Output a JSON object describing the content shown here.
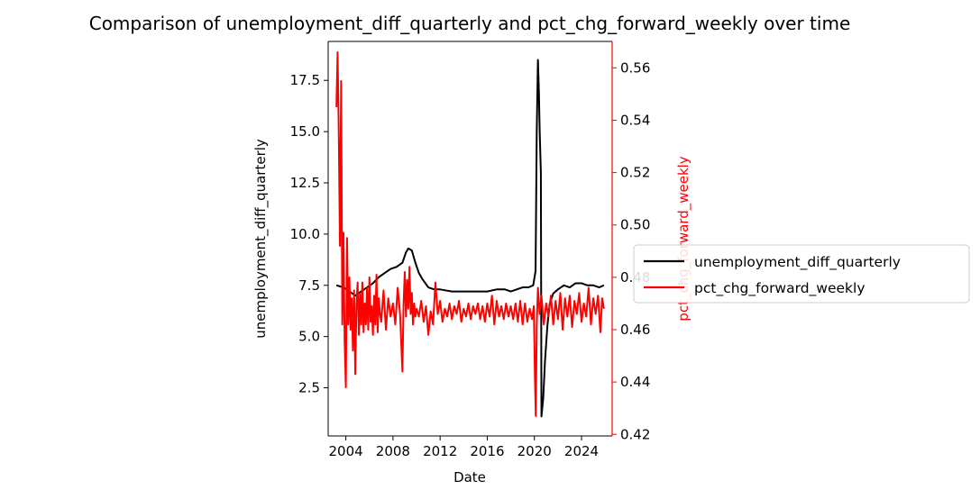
{
  "chart_data": {
    "type": "line",
    "title": "Comparison of unemployment_diff_quarterly and pct_chg_forward_weekly over time",
    "xlabel": "Date",
    "ylabel_left": "unemployment_diff_quarterly",
    "ylabel_right": "pct_chg_forward_weekly",
    "xlim": [
      2002.5,
      2026.6
    ],
    "ylim_left": [
      0.15,
      19.4
    ],
    "ylim_right": [
      0.4194,
      0.5701
    ],
    "x_ticks": [
      2004,
      2008,
      2012,
      2016,
      2020,
      2024
    ],
    "y_left_ticks": [
      2.5,
      5.0,
      7.5,
      10.0,
      12.5,
      15.0,
      17.5
    ],
    "y_right_ticks": [
      0.42,
      0.44,
      0.46,
      0.48,
      0.5,
      0.52,
      0.54,
      0.56
    ],
    "grid": false,
    "legend_position": "right, outside",
    "series": [
      {
        "name": "unemployment_diff_quarterly",
        "axis": "left",
        "color": "#000000",
        "points": [
          [
            2003.2,
            7.5
          ],
          [
            2003.8,
            7.4
          ],
          [
            2004.3,
            7.2
          ],
          [
            2004.8,
            7.0
          ],
          [
            2005.3,
            7.2
          ],
          [
            2005.8,
            7.4
          ],
          [
            2006.3,
            7.6
          ],
          [
            2006.8,
            7.9
          ],
          [
            2007.3,
            8.1
          ],
          [
            2007.8,
            8.3
          ],
          [
            2008.3,
            8.4
          ],
          [
            2008.8,
            8.6
          ],
          [
            2009.1,
            9.1
          ],
          [
            2009.3,
            9.3
          ],
          [
            2009.6,
            9.2
          ],
          [
            2009.9,
            8.6
          ],
          [
            2010.2,
            8.1
          ],
          [
            2010.5,
            7.8
          ],
          [
            2011.0,
            7.4
          ],
          [
            2011.5,
            7.3
          ],
          [
            2012.0,
            7.3
          ],
          [
            2013.0,
            7.2
          ],
          [
            2014.0,
            7.2
          ],
          [
            2015.0,
            7.2
          ],
          [
            2016.0,
            7.2
          ],
          [
            2016.8,
            7.3
          ],
          [
            2017.5,
            7.3
          ],
          [
            2018.0,
            7.2
          ],
          [
            2018.5,
            7.3
          ],
          [
            2019.0,
            7.4
          ],
          [
            2019.5,
            7.4
          ],
          [
            2019.9,
            7.5
          ],
          [
            2020.1,
            8.2
          ],
          [
            2020.2,
            15.0
          ],
          [
            2020.3,
            18.5
          ],
          [
            2020.38,
            17.0
          ],
          [
            2020.45,
            15.0
          ],
          [
            2020.55,
            13.0
          ],
          [
            2020.6,
            1.1
          ],
          [
            2020.75,
            2.0
          ],
          [
            2020.9,
            3.8
          ],
          [
            2021.1,
            5.5
          ],
          [
            2021.3,
            6.6
          ],
          [
            2021.6,
            7.1
          ],
          [
            2022.0,
            7.3
          ],
          [
            2022.5,
            7.5
          ],
          [
            2023.0,
            7.4
          ],
          [
            2023.5,
            7.6
          ],
          [
            2024.0,
            7.6
          ],
          [
            2024.5,
            7.5
          ],
          [
            2025.0,
            7.5
          ],
          [
            2025.5,
            7.4
          ],
          [
            2025.9,
            7.5
          ]
        ]
      },
      {
        "name": "pct_chg_forward_weekly",
        "axis": "right",
        "color": "#ff0000",
        "points": [
          [
            2003.2,
            0.545
          ],
          [
            2003.3,
            0.566
          ],
          [
            2003.4,
            0.535
          ],
          [
            2003.5,
            0.492
          ],
          [
            2003.6,
            0.555
          ],
          [
            2003.7,
            0.462
          ],
          [
            2003.8,
            0.497
          ],
          [
            2003.9,
            0.455
          ],
          [
            2004.0,
            0.438
          ],
          [
            2004.1,
            0.495
          ],
          [
            2004.2,
            0.462
          ],
          [
            2004.3,
            0.48
          ],
          [
            2004.4,
            0.46
          ],
          [
            2004.5,
            0.472
          ],
          [
            2004.6,
            0.452
          ],
          [
            2004.7,
            0.475
          ],
          [
            2004.8,
            0.443
          ],
          [
            2004.9,
            0.47
          ],
          [
            2005.0,
            0.478
          ],
          [
            2005.1,
            0.458
          ],
          [
            2005.2,
            0.474
          ],
          [
            2005.3,
            0.462
          ],
          [
            2005.4,
            0.478
          ],
          [
            2005.5,
            0.459
          ],
          [
            2005.6,
            0.47
          ],
          [
            2005.7,
            0.462
          ],
          [
            2005.8,
            0.476
          ],
          [
            2005.9,
            0.46
          ],
          [
            2006.0,
            0.48
          ],
          [
            2006.1,
            0.463
          ],
          [
            2006.2,
            0.469
          ],
          [
            2006.3,
            0.458
          ],
          [
            2006.4,
            0.473
          ],
          [
            2006.5,
            0.462
          ],
          [
            2006.6,
            0.481
          ],
          [
            2006.7,
            0.459
          ],
          [
            2006.8,
            0.472
          ],
          [
            2006.9,
            0.466
          ],
          [
            2007.0,
            0.463
          ],
          [
            2007.2,
            0.475
          ],
          [
            2007.4,
            0.46
          ],
          [
            2007.6,
            0.472
          ],
          [
            2007.8,
            0.465
          ],
          [
            2008.0,
            0.47
          ],
          [
            2008.2,
            0.462
          ],
          [
            2008.4,
            0.476
          ],
          [
            2008.6,
            0.466
          ],
          [
            2008.8,
            0.444
          ],
          [
            2008.9,
            0.47
          ],
          [
            2009.0,
            0.482
          ],
          [
            2009.1,
            0.465
          ],
          [
            2009.2,
            0.479
          ],
          [
            2009.3,
            0.468
          ],
          [
            2009.4,
            0.484
          ],
          [
            2009.5,
            0.466
          ],
          [
            2009.6,
            0.474
          ],
          [
            2009.7,
            0.462
          ],
          [
            2009.8,
            0.47
          ],
          [
            2009.9,
            0.465
          ],
          [
            2010.0,
            0.468
          ],
          [
            2010.2,
            0.465
          ],
          [
            2010.4,
            0.471
          ],
          [
            2010.6,
            0.463
          ],
          [
            2010.8,
            0.469
          ],
          [
            2011.0,
            0.458
          ],
          [
            2011.2,
            0.467
          ],
          [
            2011.4,
            0.462
          ],
          [
            2011.6,
            0.478
          ],
          [
            2011.8,
            0.466
          ],
          [
            2012.0,
            0.471
          ],
          [
            2012.2,
            0.463
          ],
          [
            2012.4,
            0.468
          ],
          [
            2012.6,
            0.465
          ],
          [
            2012.8,
            0.47
          ],
          [
            2013.0,
            0.464
          ],
          [
            2013.2,
            0.469
          ],
          [
            2013.4,
            0.466
          ],
          [
            2013.6,
            0.471
          ],
          [
            2013.8,
            0.463
          ],
          [
            2014.0,
            0.468
          ],
          [
            2014.2,
            0.465
          ],
          [
            2014.4,
            0.47
          ],
          [
            2014.6,
            0.464
          ],
          [
            2014.8,
            0.469
          ],
          [
            2015.0,
            0.466
          ],
          [
            2015.2,
            0.47
          ],
          [
            2015.4,
            0.464
          ],
          [
            2015.6,
            0.469
          ],
          [
            2015.8,
            0.463
          ],
          [
            2016.0,
            0.47
          ],
          [
            2016.2,
            0.465
          ],
          [
            2016.4,
            0.473
          ],
          [
            2016.6,
            0.462
          ],
          [
            2016.8,
            0.471
          ],
          [
            2017.0,
            0.465
          ],
          [
            2017.2,
            0.469
          ],
          [
            2017.4,
            0.464
          ],
          [
            2017.6,
            0.47
          ],
          [
            2017.8,
            0.465
          ],
          [
            2018.0,
            0.469
          ],
          [
            2018.2,
            0.464
          ],
          [
            2018.4,
            0.47
          ],
          [
            2018.6,
            0.463
          ],
          [
            2018.8,
            0.471
          ],
          [
            2019.0,
            0.462
          ],
          [
            2019.2,
            0.47
          ],
          [
            2019.4,
            0.463
          ],
          [
            2019.6,
            0.468
          ],
          [
            2019.8,
            0.464
          ],
          [
            2019.95,
            0.469
          ],
          [
            2020.05,
            0.441
          ],
          [
            2020.12,
            0.427
          ],
          [
            2020.2,
            0.462
          ],
          [
            2020.3,
            0.476
          ],
          [
            2020.45,
            0.466
          ],
          [
            2020.6,
            0.473
          ],
          [
            2020.8,
            0.462
          ],
          [
            2021.0,
            0.47
          ],
          [
            2021.2,
            0.465
          ],
          [
            2021.4,
            0.473
          ],
          [
            2021.6,
            0.462
          ],
          [
            2021.8,
            0.471
          ],
          [
            2022.0,
            0.464
          ],
          [
            2022.2,
            0.474
          ],
          [
            2022.4,
            0.46
          ],
          [
            2022.6,
            0.472
          ],
          [
            2022.8,
            0.465
          ],
          [
            2023.0,
            0.473
          ],
          [
            2023.2,
            0.461
          ],
          [
            2023.4,
            0.471
          ],
          [
            2023.6,
            0.466
          ],
          [
            2023.8,
            0.474
          ],
          [
            2024.0,
            0.463
          ],
          [
            2024.2,
            0.47
          ],
          [
            2024.4,
            0.465
          ],
          [
            2024.6,
            0.476
          ],
          [
            2024.8,
            0.462
          ],
          [
            2025.0,
            0.472
          ],
          [
            2025.2,
            0.466
          ],
          [
            2025.4,
            0.473
          ],
          [
            2025.6,
            0.459
          ],
          [
            2025.75,
            0.472
          ],
          [
            2025.9,
            0.468
          ]
        ]
      }
    ]
  }
}
